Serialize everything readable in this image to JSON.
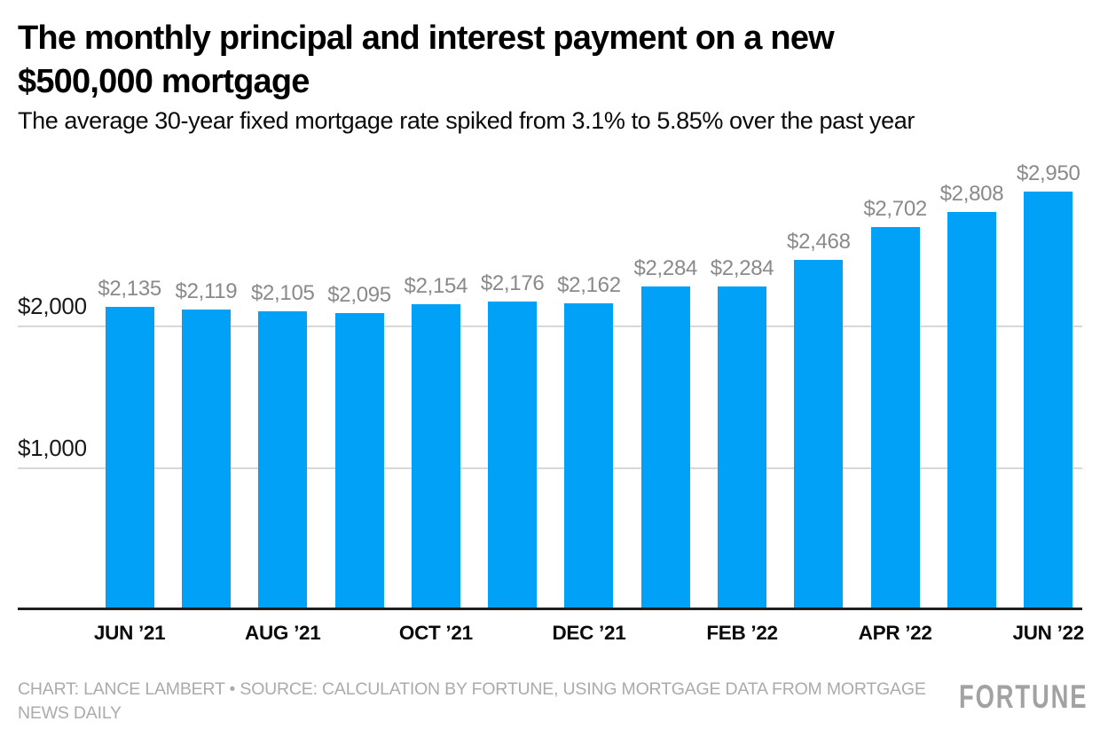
{
  "header": {
    "title_line1": "The monthly principal and interest payment on a new",
    "title_line2": "$500,000 mortgage",
    "subtitle": "The average 30-year fixed mortgage rate spiked from 3.1% to 5.85% over the past year"
  },
  "chart_data": {
    "type": "bar",
    "title": "The monthly principal and interest payment on a new $500,000 mortgage",
    "subtitle": "The average 30-year fixed mortgage rate spiked from 3.1% to 5.85% over the past year",
    "values": [
      2135,
      2119,
      2105,
      2095,
      2154,
      2176,
      2162,
      2284,
      2284,
      2468,
      2702,
      2808,
      2950
    ],
    "value_labels": [
      "$2,135",
      "$2,119",
      "$2,105",
      "$2,095",
      "$2,154",
      "$2,176",
      "$2,162",
      "$2,284",
      "$2,284",
      "$2,468",
      "$2,702",
      "$2,808",
      "$2,950"
    ],
    "x_ticks": [
      {
        "label": "JUN ’21",
        "index": 0
      },
      {
        "label": "AUG ’21",
        "index": 2
      },
      {
        "label": "OCT ’21",
        "index": 4
      },
      {
        "label": "DEC ’21",
        "index": 6
      },
      {
        "label": "FEB ’22",
        "index": 8
      },
      {
        "label": "APR ’22",
        "index": 10
      },
      {
        "label": "JUN ’22",
        "index": 12
      }
    ],
    "y_ticks": [
      {
        "label": "$1,000",
        "value": 1000
      },
      {
        "label": "$2,000",
        "value": 2000
      }
    ],
    "ylim": [
      0,
      3000
    ],
    "grid": true,
    "legend": "none"
  },
  "footer": {
    "credit": "CHART: LANCE LAMBERT • SOURCE: CALCULATION BY FORTUNE, USING MORTGAGE DATA FROM MORTGAGE NEWS DAILY",
    "logo": "FORTUNE"
  },
  "colors": {
    "bar": "#00a1f7",
    "value_label": "#8a8a8a",
    "axis_label": "#1a1a1a",
    "gridline": "#d8d8d8",
    "axis_line": "#1f1f1f",
    "footer_text": "#ababab",
    "logo": "#a2a2a2",
    "title": "#000000",
    "background": "#ffffff"
  }
}
